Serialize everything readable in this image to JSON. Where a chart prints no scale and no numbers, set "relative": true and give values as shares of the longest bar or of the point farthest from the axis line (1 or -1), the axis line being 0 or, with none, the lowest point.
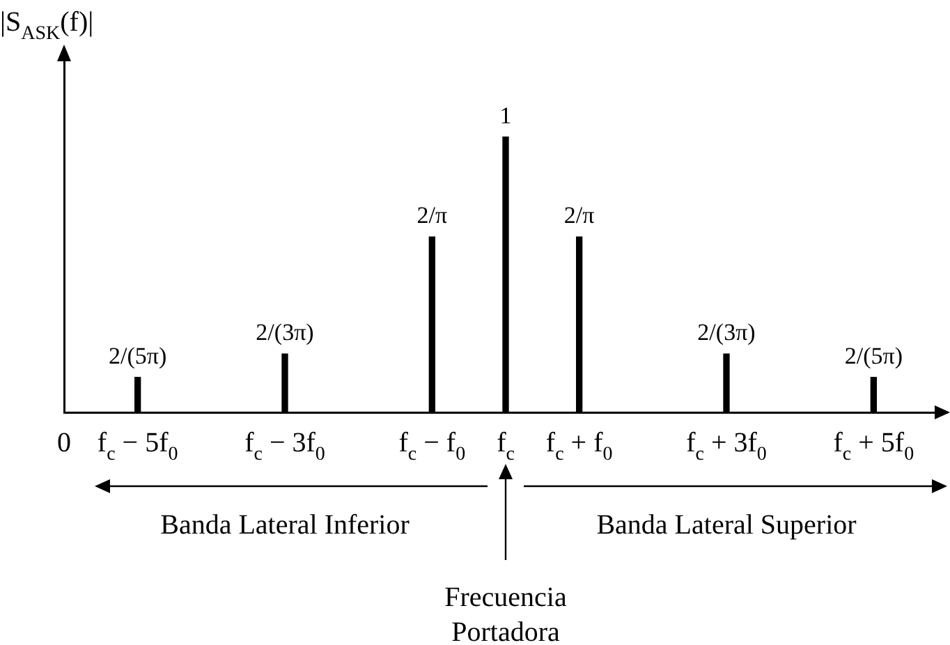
{
  "chart_data": {
    "type": "bar",
    "ylabel": "|S$_{ASK}$(f)|",
    "relative": true,
    "categories": [
      "0",
      "f$_{c}$ − 5f$_{0}$",
      null,
      "f$_{c}$ − 3f$_{0}$",
      null,
      "f$_{c}$ − f$_{0}$",
      "f$_{c}$",
      "f$_{c}$ + f$_{0}$",
      null,
      "f$_{c}$ + 3f$_{0}$",
      null,
      "f$_{c}$ + 5f$_{0}$",
      null
    ],
    "values": [
      null,
      0.127,
      null,
      0.212,
      null,
      0.637,
      1,
      0.637,
      null,
      0.212,
      null,
      0.127,
      null
    ],
    "color": "#000000",
    "tick_labels": "x",
    "grid": false,
    "legend": false,
    "annotations": [
      "Banda Lateral Inferior",
      "Banda Lateral Superior",
      "Frecuencia Portadora",
      {
        "text": "2/(5π)",
        "x": "f$_{c}$ − 5f$_{0}$",
        "y": 0.127
      },
      {
        "text": "2/(3π)",
        "x": "f$_{c}$ − 3f$_{0}$",
        "y": 0.212
      },
      {
        "text": "2/π",
        "x": "f$_{c}$ − f$_{0}$",
        "y": 0.637
      },
      {
        "text": "1",
        "x": "f$_{c}$",
        "y": 1
      },
      {
        "text": "2/π",
        "x": "f$_{c}$ + f$_{0}$",
        "y": 0.637
      },
      {
        "text": "2/(3π)",
        "x": "f$_{c}$ + 3f$_{0}$",
        "y": 0.212
      },
      {
        "text": "2/(5π)",
        "x": "f$_{c}$ + 5f$_{0}$",
        "y": 0.127
      }
    ]
  }
}
